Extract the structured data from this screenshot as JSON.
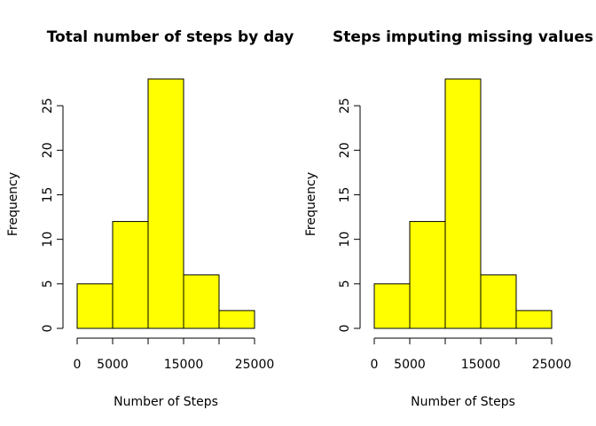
{
  "chart_data": [
    {
      "type": "bar",
      "title": "Total number of steps by day",
      "xlabel": "Number of Steps",
      "ylabel": "Frequency",
      "bins": [
        [
          0,
          5000
        ],
        [
          5000,
          10000
        ],
        [
          10000,
          15000
        ],
        [
          15000,
          20000
        ],
        [
          20000,
          25000
        ]
      ],
      "values": [
        5,
        12,
        28,
        6,
        2
      ],
      "xlim": [
        0,
        25000
      ],
      "ylim": [
        0,
        28
      ],
      "xticks": [
        0,
        5000,
        15000,
        25000
      ],
      "xtick_labels": [
        "0",
        "5000",
        "15000",
        "25000"
      ],
      "xtick_marks": [
        0,
        5000,
        10000,
        15000,
        20000,
        25000
      ],
      "yticks": [
        0,
        5,
        10,
        15,
        20,
        25
      ],
      "ytick_labels": [
        "0",
        "5",
        "10",
        "15",
        "20",
        "25"
      ],
      "bar_color": "#ffff00",
      "grid": false
    },
    {
      "type": "bar",
      "title": "Steps imputing missing values",
      "xlabel": "Number of Steps",
      "ylabel": "Frequency",
      "bins": [
        [
          0,
          5000
        ],
        [
          5000,
          10000
        ],
        [
          10000,
          15000
        ],
        [
          15000,
          20000
        ],
        [
          20000,
          25000
        ]
      ],
      "values": [
        5,
        12,
        28,
        6,
        2
      ],
      "xlim": [
        0,
        25000
      ],
      "ylim": [
        0,
        28
      ],
      "xticks": [
        0,
        5000,
        15000,
        25000
      ],
      "xtick_labels": [
        "0",
        "5000",
        "15000",
        "25000"
      ],
      "xtick_marks": [
        0,
        5000,
        10000,
        15000,
        20000,
        25000
      ],
      "yticks": [
        0,
        5,
        10,
        15,
        20,
        25
      ],
      "ytick_labels": [
        "0",
        "5",
        "10",
        "15",
        "20",
        "25"
      ],
      "bar_color": "#ffff00",
      "grid": false
    }
  ]
}
